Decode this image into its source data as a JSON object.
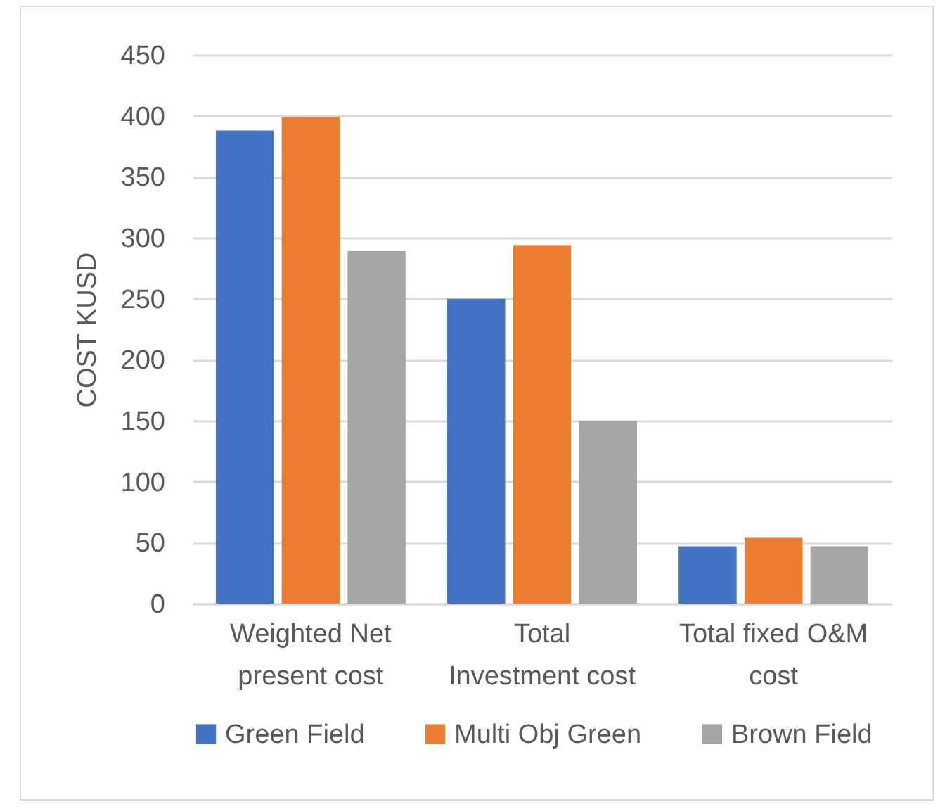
{
  "chart_data": {
    "type": "bar",
    "ylabel": "COST KUSD",
    "categories": [
      "Weighted Net present cost",
      "Total Investment cost",
      "Total fixed O&M cost"
    ],
    "series": [
      {
        "name": "Green Field",
        "color": "#4472c4",
        "values": [
          388,
          250,
          47
        ]
      },
      {
        "name": "Multi Obj Green",
        "color": "#ed7d31",
        "values": [
          399,
          294,
          54
        ]
      },
      {
        "name": "Brown Field",
        "color": "#a5a5a5",
        "values": [
          289,
          150,
          47
        ]
      }
    ],
    "ylim": [
      0,
      450
    ],
    "yticks": [
      0,
      50,
      100,
      150,
      200,
      250,
      300,
      350,
      400,
      450
    ],
    "grid": "y",
    "legend": "bottom"
  }
}
